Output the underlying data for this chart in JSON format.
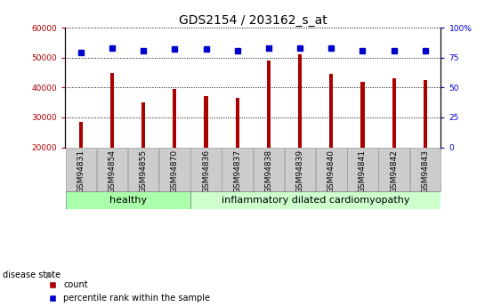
{
  "title": "GDS2154 / 203162_s_at",
  "categories": [
    "GSM94831",
    "GSM94854",
    "GSM94855",
    "GSM94870",
    "GSM94836",
    "GSM94837",
    "GSM94838",
    "GSM94839",
    "GSM94840",
    "GSM94841",
    "GSM94842",
    "GSM94843"
  ],
  "bar_values": [
    28500,
    44800,
    35000,
    39500,
    37000,
    36500,
    49000,
    51000,
    44500,
    42000,
    43000,
    42500
  ],
  "percentile_values": [
    79,
    83,
    81,
    82,
    82,
    81,
    83,
    83,
    83,
    81,
    81,
    81
  ],
  "bar_color": "#AA0000",
  "dot_color": "#0000CC",
  "ylim_left": [
    20000,
    60000
  ],
  "ylim_right": [
    0,
    100
  ],
  "yticks_left": [
    20000,
    30000,
    40000,
    50000,
    60000
  ],
  "yticks_right": [
    0,
    25,
    50,
    75,
    100
  ],
  "ytick_labels_right": [
    "0",
    "25",
    "50",
    "75",
    "100%"
  ],
  "healthy_samples": 4,
  "disease_label_healthy": "healthy",
  "disease_label_disease": "inflammatory dilated cardiomyopathy",
  "disease_state_label": "disease state",
  "legend_count": "count",
  "legend_percentile": "percentile rank within the sample",
  "bg_healthy": "#AAFFAA",
  "bg_disease": "#CCFFCC",
  "xtick_bg": "#CCCCCC",
  "xtick_border": "#999999",
  "grid_color": "#000000",
  "title_fontsize": 10,
  "tick_fontsize": 6.5,
  "bar_width": 0.12
}
